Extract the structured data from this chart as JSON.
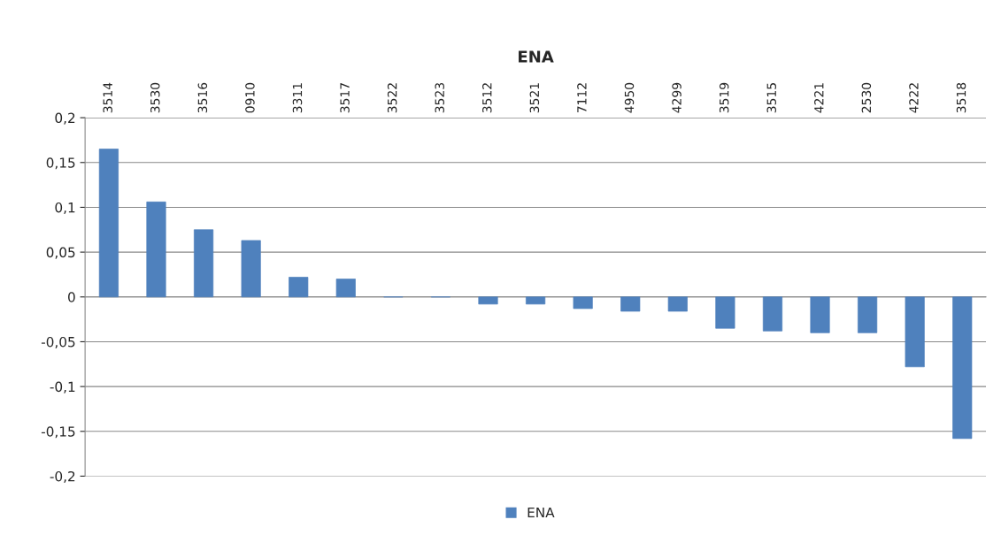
{
  "chart_data": {
    "type": "bar",
    "title": "ENA",
    "categories": [
      "3514",
      "3530",
      "3516",
      "0910",
      "3311",
      "3517",
      "3522",
      "3523",
      "3512",
      "3521",
      "7112",
      "4950",
      "4299",
      "3519",
      "3515",
      "4221",
      "2530",
      "4222",
      "3518"
    ],
    "series": [
      {
        "name": "ENA",
        "color": "#4f81bd",
        "values": [
          0.165,
          0.106,
          0.075,
          0.063,
          0.022,
          0.02,
          0,
          0,
          -0.008,
          -0.008,
          -0.013,
          -0.016,
          -0.016,
          -0.035,
          -0.038,
          -0.04,
          -0.04,
          -0.078,
          -0.158
        ]
      }
    ],
    "ylim": [
      -0.2,
      0.2
    ],
    "yticks": [
      {
        "value": -0.2,
        "label": "-0,2"
      },
      {
        "value": -0.15,
        "label": "-0,15"
      },
      {
        "value": -0.1,
        "label": "-0,1"
      },
      {
        "value": -0.05,
        "label": "-0,05"
      },
      0,
      {
        "value": 0.05,
        "label": "0,05"
      },
      {
        "value": 0.1,
        "label": "0,1"
      },
      {
        "value": 0.15,
        "label": "0,15"
      },
      {
        "value": 0.2,
        "label": "0,2"
      }
    ],
    "grid": "y",
    "legend": "bottom"
  }
}
